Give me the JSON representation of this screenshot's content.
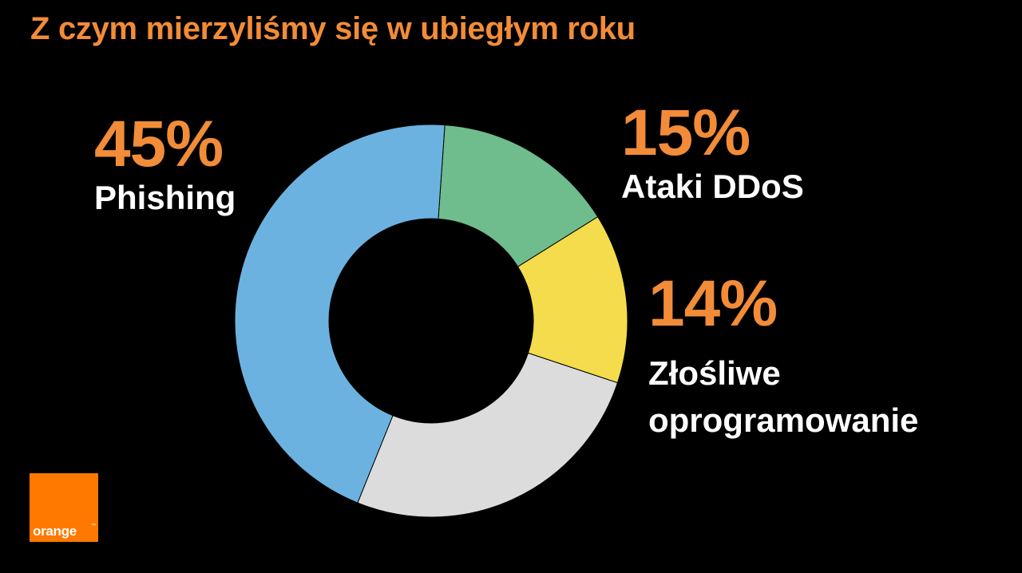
{
  "title": "Z czym mierzyliśmy się w ubiegłym roku",
  "chart_data": {
    "type": "pie",
    "donut": true,
    "title": "Z czym mierzyliśmy się w ubiegłym roku",
    "legend": "none",
    "slices": [
      {
        "value": 15,
        "color": "#6fbd8c"
      },
      {
        "value": 14,
        "color": "#f4dc4c"
      },
      {
        "value": 26,
        "color": "#dcdcdc"
      },
      {
        "value": 45,
        "color": "#6cb2e0"
      }
    ]
  },
  "labels": [
    {
      "percent": "45%",
      "name": "Phishing"
    },
    {
      "percent": "15%",
      "name": "Ataki DDoS"
    },
    {
      "percent": "14%",
      "name": "Złośliwe oprogramowanie",
      "line1": "Złośliwe",
      "line2": "oprogramowanie"
    }
  ],
  "logo": {
    "text": "orange",
    "tm": "™",
    "color": "#ff7900"
  }
}
